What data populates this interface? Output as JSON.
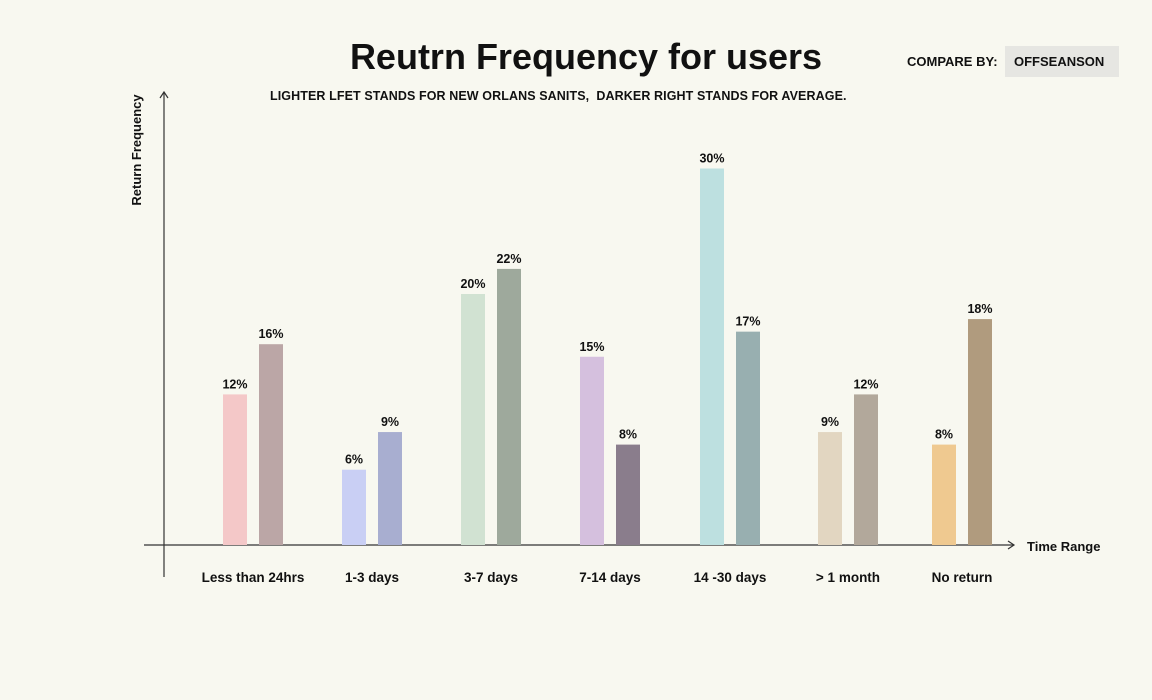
{
  "chart_data": {
    "type": "bar",
    "title": "Reutrn Frequency for users",
    "subtitle": "LIGHTER LFET STANDS FOR NEW ORLANS SANITS,  DARKER RIGHT STANDS FOR AVERAGE.",
    "xlabel": "Time Range",
    "ylabel": "Return Frequency",
    "categories": [
      "Less than 24hrs",
      "1-3 days",
      "3-7 days",
      "7-14 days",
      "14 -30 days",
      "> 1 month",
      "No return"
    ],
    "series": [
      {
        "values": [
          12,
          6,
          20,
          15,
          30,
          9,
          8
        ],
        "labels": [
          "12%",
          "6%",
          "20%",
          "15%",
          "30%",
          "9%",
          "8%"
        ],
        "colors": [
          "#f4c8c8",
          "#c9cff4",
          "#d1e2d2",
          "#d5c0de",
          "#bde0e0",
          "#e2d6c1",
          "#efc990"
        ]
      },
      {
        "values": [
          16,
          9,
          22,
          8,
          17,
          12,
          18
        ],
        "labels": [
          "16%",
          "9%",
          "22%",
          "8%",
          "17%",
          "12%",
          "18%"
        ],
        "colors": [
          "#bba6a6",
          "#a8aed0",
          "#9ea99c",
          "#8a7d8c",
          "#98afb0",
          "#b2a89b",
          "#b09b7e"
        ]
      }
    ],
    "ylim": [
      0,
      30
    ],
    "grid": false,
    "legend": "none"
  },
  "controls": {
    "compare_label": "COMPARE BY:",
    "compare_value": "OFFSEANSON"
  }
}
